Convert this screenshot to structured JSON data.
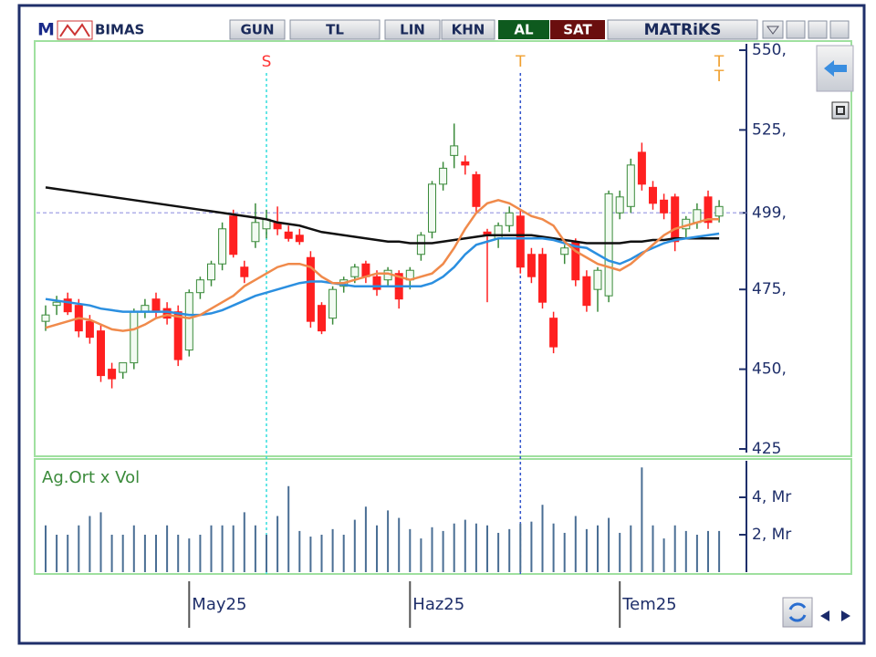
{
  "toolbar": {
    "logo": "M",
    "symbol": "BIMAS",
    "buttons": [
      "GUN",
      "TL",
      "LIN",
      "KHN"
    ],
    "buy": "AL",
    "sell": "SAT",
    "brand": "MATRiKS"
  },
  "chart_data": [
    {
      "type": "candlestick",
      "open": [
        465,
        470,
        472,
        470,
        465,
        462,
        450,
        449,
        452,
        468,
        472,
        469,
        468,
        456,
        474,
        478,
        483,
        498,
        482,
        490,
        494,
        496,
        493,
        492,
        485,
        470,
        466,
        476,
        479,
        483,
        479,
        478,
        480,
        478,
        486,
        493,
        508,
        517,
        515,
        511,
        493,
        491,
        495,
        498,
        486,
        486,
        466,
        486,
        490,
        479,
        475,
        473,
        499,
        501,
        518,
        507,
        503,
        504,
        494,
        496,
        504,
        498
      ],
      "high": [
        470,
        473,
        474,
        472,
        467,
        464,
        452,
        452,
        469,
        472,
        474,
        471,
        470,
        475,
        479,
        484,
        496,
        500,
        484,
        502,
        500,
        501,
        495,
        494,
        487,
        471,
        476,
        479,
        483,
        484,
        481,
        482,
        481,
        482,
        493,
        509,
        515,
        527,
        517,
        512,
        494,
        496,
        501,
        500,
        488,
        488,
        468,
        489,
        491,
        481,
        482,
        506,
        506,
        516,
        521,
        509,
        505,
        505,
        498,
        502,
        506,
        503
      ],
      "low": [
        462,
        467,
        467,
        460,
        458,
        446,
        444,
        447,
        450,
        466,
        466,
        464,
        451,
        454,
        472,
        476,
        481,
        485,
        477,
        488,
        491,
        492,
        490,
        489,
        463,
        461,
        464,
        474,
        477,
        477,
        473,
        476,
        469,
        475,
        484,
        491,
        506,
        513,
        511,
        499,
        471,
        488,
        493,
        480,
        477,
        469,
        455,
        483,
        476,
        468,
        468,
        471,
        497,
        499,
        506,
        500,
        497,
        487,
        491,
        494,
        494,
        496
      ],
      "close": [
        467,
        471,
        468,
        462,
        460,
        448,
        447,
        452,
        468,
        470,
        468,
        466,
        453,
        474,
        478,
        483,
        494,
        486,
        479,
        496,
        497,
        494,
        491,
        490,
        465,
        462,
        475,
        478,
        482,
        479,
        475,
        481,
        472,
        481,
        492,
        508,
        513,
        520,
        514,
        501,
        492,
        495,
        499,
        482,
        479,
        471,
        457,
        488,
        478,
        470,
        481,
        505,
        504,
        514,
        508,
        502,
        499,
        490,
        497,
        500,
        496,
        501
      ],
      "up_color": "#3a8a3a",
      "down_color": "#ff2020",
      "lines": [
        {
          "color": "#111111",
          "values": [
            507,
            506.5,
            506,
            505.5,
            505,
            504.5,
            504,
            503.5,
            503,
            502.5,
            502,
            501.5,
            501,
            500.5,
            500,
            499.5,
            499,
            498.5,
            498,
            497.5,
            497,
            496,
            495.5,
            495,
            494,
            493,
            492.5,
            492,
            491.5,
            491,
            490.5,
            490,
            490,
            489.5,
            489.5,
            489.5,
            490,
            490.5,
            491,
            491.5,
            492,
            492,
            492,
            492,
            492,
            491.5,
            491,
            490.5,
            490,
            489.5,
            489.5,
            489.5,
            489.5,
            490,
            490,
            490.5,
            490.5,
            491,
            491,
            491,
            491,
            491
          ]
        },
        {
          "color": "#2b8fe0",
          "values": [
            472,
            471.5,
            471,
            470.5,
            470,
            469,
            468.5,
            468,
            468,
            468,
            468,
            468,
            467.5,
            467,
            467,
            467.5,
            468.5,
            470,
            471.5,
            473,
            474,
            475,
            476,
            477,
            477.5,
            477.5,
            477,
            476.5,
            476,
            476,
            476,
            476,
            476,
            476,
            476,
            477,
            479,
            482,
            486,
            489,
            490,
            491,
            491,
            491,
            491,
            491,
            490.5,
            489.5,
            488.5,
            488,
            486,
            484,
            483,
            484.5,
            486.5,
            488,
            489.5,
            490.5,
            491,
            491.5,
            492,
            492.5
          ]
        },
        {
          "color": "#f08a4b",
          "values": [
            463,
            464,
            465,
            466,
            465.5,
            464,
            462.5,
            462,
            462.5,
            464,
            466,
            467,
            466.5,
            466,
            467,
            469,
            471,
            473,
            476,
            478,
            480,
            482,
            483,
            483,
            482,
            479,
            477,
            477,
            478,
            479,
            480,
            480,
            479,
            478,
            479,
            480,
            483,
            488,
            494,
            499,
            502,
            503,
            502,
            500,
            498,
            497,
            495,
            490,
            487,
            485,
            483,
            482,
            481,
            483,
            486,
            489,
            492,
            494,
            495,
            496,
            497,
            497
          ]
        }
      ],
      "reference_line": 499,
      "ylim": [
        425,
        550
      ],
      "yticks": [
        {
          "value": 550,
          "label": "550,"
        },
        {
          "value": 525,
          "label": "525,"
        },
        {
          "value": 499,
          "label": "499,"
        },
        {
          "value": 475,
          "label": "475,"
        },
        {
          "value": 450,
          "label": "450,"
        },
        {
          "value": 425,
          "label": "425"
        }
      ],
      "annotations": [
        {
          "text": "S",
          "x": 20,
          "color": "#ff3333",
          "line_color": "#33dddd"
        },
        {
          "text": "T",
          "x": 43,
          "color": "#f0a030",
          "line_color": "#3355cc"
        },
        {
          "text": "T",
          "x": 61,
          "color": "#f0a030"
        },
        {
          "text": "T",
          "x": 61,
          "color": "#f0a030"
        }
      ]
    },
    {
      "type": "bar",
      "title": "Ag.Ort x Vol",
      "values": [
        2.5,
        2,
        2,
        2.5,
        3,
        3.2,
        2,
        2,
        2.5,
        2,
        2,
        2.5,
        2,
        1.8,
        2,
        2.5,
        2.5,
        2.5,
        3.2,
        2.5,
        2,
        3,
        4.6,
        2.2,
        1.9,
        2,
        2.3,
        2,
        2.8,
        3.5,
        2.5,
        3.3,
        2.9,
        2.3,
        1.8,
        2.4,
        2.2,
        2.6,
        2.8,
        2.6,
        2.5,
        2.1,
        2.3,
        2.6,
        2.7,
        3.6,
        2.6,
        2.1,
        3,
        2.3,
        2.5,
        2.9,
        2.1,
        2.5,
        5.6,
        2.5,
        1.8,
        2.5,
        2.2,
        2,
        2.2,
        2.2
      ],
      "color": "#4a6e94",
      "ylim": [
        0,
        6
      ],
      "yticks": [
        {
          "value": 4,
          "label": "4, Mr"
        },
        {
          "value": 2,
          "label": "2, Mr"
        }
      ],
      "xticks": [
        {
          "value": 13,
          "label": "May25"
        },
        {
          "value": 33,
          "label": "Haz25"
        },
        {
          "value": 52,
          "label": "Tem25"
        }
      ]
    }
  ]
}
